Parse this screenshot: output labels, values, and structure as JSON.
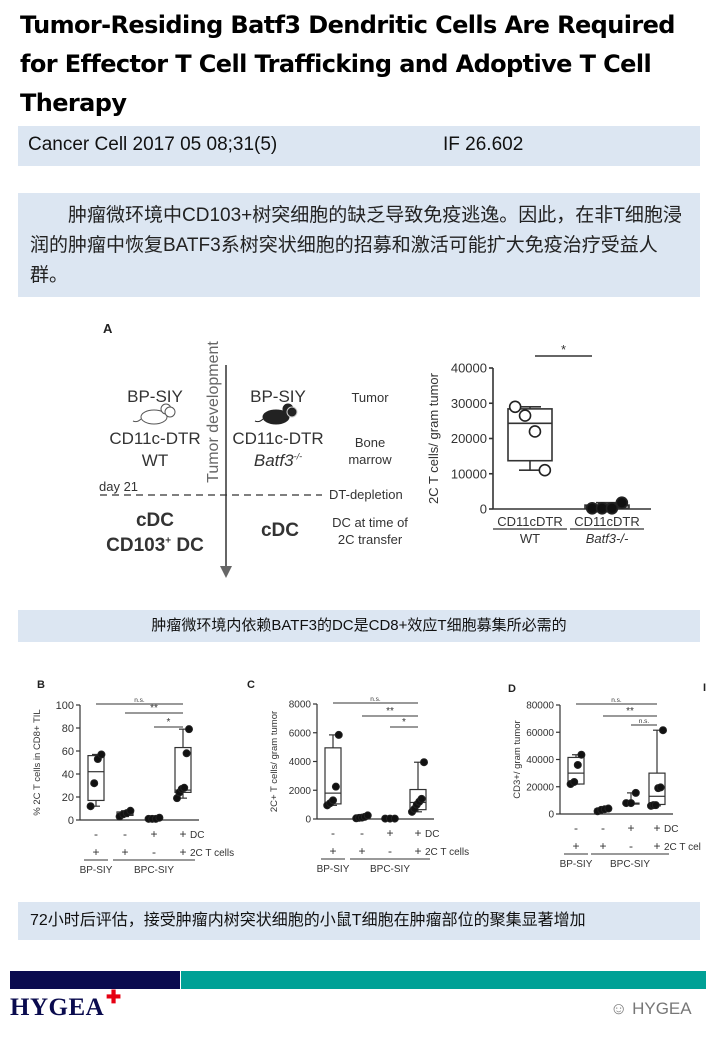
{
  "title": "Tumor-Residing Batf3 Dendritic Cells Are Required for Effector T Cell Trafficking and Adoptive T Cell Therapy",
  "citation": {
    "journal": "Cancer Cell 2017 05 08;31(5)",
    "impact_factor": "IF 26.602"
  },
  "summary": "　　肿瘤微环境中CD103+树突细胞的缺乏导致免疫逃逸。因此，在非T细胞浸润的肿瘤中恢复BATF3系树突状细胞的招募和激活可能扩大免疫治疗受益人群。",
  "caption1": "肿瘤微环境内依赖BATF3的DC是CD8+效应T细胞募集所必需的",
  "caption2": "72小时后评估，接受肿瘤内树突状细胞的小鼠T细胞在肿瘤部位的聚集显著增加",
  "diagram": {
    "panel": "A",
    "axis_label": "Tumor development",
    "left_tumor": "BP-SIY",
    "left_marrow": "CD11c-DTR",
    "left_genotype": "WT",
    "right_tumor": "BP-SIY",
    "right_marrow": "CD11c-DTR",
    "right_genotype": "Batf3",
    "right_genotype_sup": "-/-",
    "row_tumor": "Tumor",
    "row_marrow_1": "Bone",
    "row_marrow_2": "marrow",
    "day": "day 21",
    "row_depletion": "DT-depletion",
    "left_dc_1": "cDC",
    "left_dc_2": "CD103",
    "left_dc_2_sup": "+",
    "left_dc_2_end": " DC",
    "right_dc": "cDC",
    "row_dc_1": "DC at time of",
    "row_dc_2": "2C transfer",
    "mouse_icons": [
      "mouse-outline-icon",
      "mouse-filled-icon"
    ]
  },
  "chart_data": [
    {
      "type": "box",
      "panel": "",
      "ylabel": "2C T cells/ gram tumor",
      "ylim": [
        0,
        40000
      ],
      "yticks": [
        0,
        10000,
        20000,
        30000,
        40000
      ],
      "groups": [
        {
          "label": "CD11cDTR",
          "sublabel": "WT",
          "filled": false,
          "points": [
            29000,
            26500,
            22000,
            11000
          ],
          "box": {
            "min": 11000,
            "q1": 13700,
            "median": 24300,
            "q3": 28400,
            "max": 29000
          }
        },
        {
          "label": "CD11cDTR",
          "sublabel": "Batf3-/-",
          "filled": true,
          "points": [
            200,
            200,
            200,
            1800
          ],
          "box": {
            "min": 200,
            "q1": 200,
            "median": 900,
            "q3": 1100,
            "max": 1800
          }
        }
      ],
      "significance": [
        {
          "from": 0,
          "to": 1,
          "label": "*"
        }
      ]
    },
    {
      "type": "box",
      "panel": "B",
      "ylabel": "% 2C T cells in CD8+ TIL",
      "ylim": [
        0,
        100
      ],
      "yticks": [
        0,
        20,
        40,
        60,
        80,
        100
      ],
      "groups": [
        {
          "DC": "-",
          "T": "+",
          "filled": true,
          "points": [
            12,
            32,
            53,
            57
          ],
          "box": {
            "min": 12,
            "q1": 17,
            "median": 42,
            "q3": 56,
            "max": 57
          }
        },
        {
          "DC": "-",
          "T": "+",
          "filled": true,
          "points": [
            3,
            5,
            6,
            8
          ],
          "box": {
            "min": 3,
            "q1": 4,
            "median": 5,
            "q3": 7,
            "max": 8
          }
        },
        {
          "DC": "+",
          "T": "-",
          "filled": true,
          "points": [
            1,
            1,
            1,
            2
          ],
          "box": {
            "min": 1,
            "q1": 1,
            "median": 1,
            "q3": 1,
            "max": 2
          }
        },
        {
          "DC": "+",
          "T": "+",
          "filled": true,
          "points": [
            19,
            24,
            27,
            28,
            58,
            79
          ],
          "box": {
            "min": 19,
            "q1": 24,
            "median": 26,
            "q3": 63,
            "max": 79
          }
        }
      ],
      "significance": [
        {
          "from": 0,
          "to": 3,
          "label": "n.s."
        },
        {
          "from": 1,
          "to": 3,
          "label": "**"
        },
        {
          "from": 2,
          "to": 3,
          "label": "*"
        }
      ],
      "row_labels": {
        "DC": "DC",
        "T": "2C T cells"
      },
      "cohorts": [
        {
          "label": "BP-SIY",
          "groups": [
            0,
            0
          ]
        },
        {
          "label": "BPC-SIY",
          "groups": [
            1,
            3
          ]
        }
      ]
    },
    {
      "type": "box",
      "panel": "C",
      "ylabel": "2C+ T cells/ gram tumor",
      "ylim": [
        0,
        8000
      ],
      "yticks": [
        0,
        2000,
        4000,
        6000,
        8000
      ],
      "groups": [
        {
          "DC": "-",
          "T": "+",
          "filled": true,
          "points": [
            950,
            1100,
            1300,
            2250,
            5850
          ],
          "box": {
            "min": 950,
            "q1": 1050,
            "median": 1800,
            "q3": 4950,
            "max": 5850
          }
        },
        {
          "DC": "-",
          "T": "+",
          "filled": true,
          "points": [
            50,
            80,
            100,
            150,
            250
          ],
          "box": {
            "min": 50,
            "q1": 60,
            "median": 100,
            "q3": 150,
            "max": 250
          }
        },
        {
          "DC": "+",
          "T": "-",
          "filled": true,
          "points": [
            30,
            30,
            30
          ],
          "box": {
            "min": 30,
            "q1": 30,
            "median": 30,
            "q3": 30,
            "max": 30
          }
        },
        {
          "DC": "+",
          "T": "+",
          "filled": true,
          "points": [
            500,
            700,
            1000,
            1200,
            1400,
            3950
          ],
          "box": {
            "min": 500,
            "q1": 650,
            "median": 1150,
            "q3": 2050,
            "max": 3950
          }
        }
      ],
      "significance": [
        {
          "from": 0,
          "to": 3,
          "label": "n.s."
        },
        {
          "from": 1,
          "to": 3,
          "label": "**"
        },
        {
          "from": 2,
          "to": 3,
          "label": "*"
        }
      ],
      "row_labels": {
        "DC": "DC",
        "T": "2C T cells"
      },
      "cohorts": [
        {
          "label": "BP-SIY",
          "groups": [
            0,
            0
          ]
        },
        {
          "label": "BPC-SIY",
          "groups": [
            1,
            3
          ]
        }
      ]
    },
    {
      "type": "box",
      "panel": "D",
      "ylabel": "CD3+/ gram tumor",
      "ylim": [
        0,
        80000
      ],
      "yticks": [
        0,
        20000,
        40000,
        60000,
        80000
      ],
      "groups": [
        {
          "DC": "-",
          "T": "+",
          "filled": true,
          "points": [
            22000,
            23500,
            36000,
            43500
          ],
          "box": {
            "min": 22000,
            "q1": 22000,
            "median": 30000,
            "q3": 41500,
            "max": 43500
          }
        },
        {
          "DC": "-",
          "T": "+",
          "filled": true,
          "points": [
            2000,
            3000,
            3500,
            4000
          ],
          "box": {
            "min": 2000,
            "q1": 2500,
            "median": 3000,
            "q3": 3800,
            "max": 4000
          }
        },
        {
          "DC": "+",
          "T": "-",
          "filled": true,
          "points": [
            8000,
            8000,
            15500
          ],
          "box": {
            "min": 8000,
            "q1": 8000,
            "median": 8000,
            "q3": 8000,
            "max": 15500
          }
        },
        {
          "DC": "+",
          "T": "+",
          "filled": true,
          "points": [
            6000,
            6500,
            6500,
            19000,
            19500,
            61500
          ],
          "box": {
            "min": 6000,
            "q1": 7000,
            "median": 13000,
            "q3": 30000,
            "max": 61500
          }
        }
      ],
      "significance": [
        {
          "from": 0,
          "to": 3,
          "label": "n.s."
        },
        {
          "from": 1,
          "to": 3,
          "label": "**"
        },
        {
          "from": 2,
          "to": 3,
          "label": "n.s."
        }
      ],
      "row_labels": {
        "DC": "DC",
        "T": "2C T cel"
      },
      "cohorts": [
        {
          "label": "BP-SIY",
          "groups": [
            0,
            0
          ]
        },
        {
          "label": "BPC-SIY",
          "groups": [
            1,
            3
          ]
        }
      ]
    }
  ],
  "edge_panel_letter": "I",
  "footer": {
    "logo": "HYGEA",
    "watermark": "HYGEA",
    "colors": {
      "navy": "#0a0b4e",
      "teal": "#00a196",
      "band": "#dce6f2",
      "cross": "#e60012"
    }
  }
}
